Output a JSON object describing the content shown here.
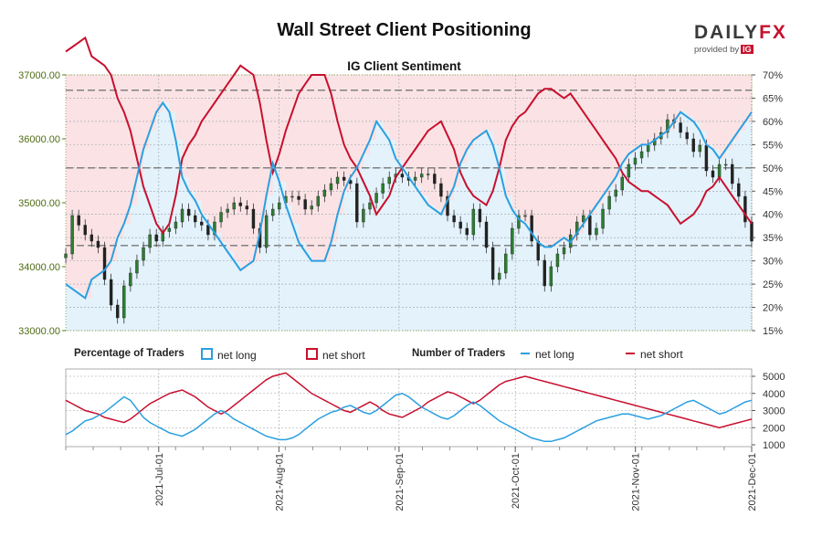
{
  "header": {
    "title": "Wall Street Client Positioning",
    "subtitle": "IG Client Sentiment",
    "logo_main": "DAILY",
    "logo_fx": "FX",
    "logo_provided": "provided by",
    "logo_ig": "IG"
  },
  "legend": {
    "percentage_title": "Percentage of Traders",
    "pct_long": "net long",
    "pct_short": "net short",
    "number_title": "Number of Traders",
    "num_long": "net long",
    "num_short": "net short"
  },
  "colors": {
    "long": "#2b9fe0",
    "short": "#c8102e",
    "candle_up": "#2e7d32",
    "candle_down": "#222222",
    "short_band": "#fbe3e5",
    "long_band": "#e3f2fb"
  },
  "axes": {
    "price_ticks": [
      "33000.00",
      "34000.00",
      "35000.00",
      "36000.00",
      "37000.00"
    ],
    "pct_ticks": [
      "15%",
      "20%",
      "25%",
      "30%",
      "35%",
      "40%",
      "45%",
      "50%",
      "55%",
      "60%",
      "65%",
      "70%"
    ],
    "count_ticks": [
      "1000",
      "2000",
      "3000",
      "4000",
      "5000"
    ],
    "x_ticks": [
      "2021-Jul-01",
      "2021-Aug-01",
      "2021-Sep-01",
      "2021-Oct-01",
      "2021-Nov-01",
      "2021-Dec-01"
    ]
  },
  "chart_data": [
    {
      "type": "line",
      "title": "IG Client Sentiment",
      "xlim": [
        "2021-06-07",
        "2021-12-01"
      ],
      "price_ylim": [
        33000,
        37000
      ],
      "percent_ylim": [
        15,
        70
      ],
      "reference_lines_percent": [
        66.7,
        50,
        33.3
      ],
      "grid": true,
      "price_candles_close": [
        34200,
        34800,
        34650,
        34500,
        34400,
        34300,
        33800,
        33400,
        33200,
        33700,
        33900,
        34100,
        34300,
        34500,
        34400,
        34550,
        34600,
        34700,
        34900,
        34800,
        34700,
        34650,
        34500,
        34700,
        34850,
        34900,
        35000,
        34950,
        34900,
        34600,
        34300,
        34800,
        34900,
        35000,
        35100,
        35100,
        35050,
        34900,
        34950,
        35100,
        35200,
        35300,
        35400,
        35350,
        35300,
        34700,
        34900,
        35000,
        35150,
        35300,
        35400,
        35450,
        35400,
        35350,
        35400,
        35450,
        35450,
        35300,
        35100,
        34800,
        34700,
        34600,
        34500,
        34900,
        34700,
        34300,
        33800,
        33900,
        34200,
        34600,
        34800,
        34800,
        34400,
        34100,
        33700,
        34000,
        34200,
        34300,
        34500,
        34700,
        34800,
        34500,
        34600,
        34900,
        35100,
        35200,
        35400,
        35600,
        35700,
        35800,
        35900,
        36000,
        36100,
        36300,
        36250,
        36100,
        36000,
        35800,
        35900,
        35500,
        35400,
        35600,
        35600,
        35300,
        35100,
        34700,
        34400
      ],
      "percent_long": [
        25,
        24,
        23,
        22,
        26,
        27,
        28,
        30,
        35,
        38,
        42,
        48,
        54,
        58,
        62,
        64,
        62,
        56,
        48,
        45,
        43,
        40,
        38,
        36,
        34,
        32,
        30,
        28,
        29,
        30,
        36,
        44,
        51,
        47,
        42,
        38,
        34,
        32,
        30,
        30,
        30,
        34,
        40,
        45,
        48,
        50,
        53,
        56,
        60,
        58,
        56,
        52,
        50,
        48,
        46,
        44,
        42,
        41,
        40,
        43,
        46,
        51,
        54,
        56,
        57,
        58,
        55,
        50,
        44,
        41,
        39,
        38,
        36,
        34,
        33,
        33,
        34,
        35,
        34,
        36,
        38,
        40,
        42,
        44,
        46,
        48,
        51,
        53,
        54,
        55,
        55,
        56,
        57,
        58,
        60,
        62,
        61,
        60,
        58,
        55,
        54,
        52,
        54,
        56,
        58,
        60,
        62
      ],
      "percent_short": [
        75,
        76,
        77,
        78,
        74,
        73,
        72,
        70,
        65,
        62,
        58,
        52,
        46,
        42,
        38,
        36,
        38,
        44,
        52,
        55,
        57,
        60,
        62,
        64,
        66,
        68,
        70,
        72,
        71,
        70,
        64,
        56,
        49,
        53,
        58,
        62,
        66,
        68,
        70,
        70,
        70,
        66,
        60,
        55,
        52,
        50,
        47,
        44,
        40,
        42,
        44,
        48,
        50,
        52,
        54,
        56,
        58,
        59,
        60,
        57,
        54,
        49,
        46,
        44,
        43,
        42,
        45,
        50,
        56,
        59,
        61,
        62,
        64,
        66,
        67,
        67,
        66,
        65,
        66,
        64,
        62,
        60,
        58,
        56,
        54,
        52,
        49,
        47,
        46,
        45,
        45,
        44,
        43,
        42,
        40,
        38,
        39,
        40,
        42,
        45,
        46,
        48,
        46,
        44,
        42,
        40,
        38
      ],
      "traders_long": [
        1600,
        1800,
        2100,
        2400,
        2500,
        2700,
        2900,
        3200,
        3500,
        3800,
        3600,
        3100,
        2600,
        2300,
        2100,
        1900,
        1700,
        1600,
        1500,
        1700,
        1900,
        2200,
        2500,
        2800,
        3000,
        2800,
        2500,
        2300,
        2100,
        1900,
        1700,
        1500,
        1400,
        1300,
        1300,
        1400,
        1600,
        1900,
        2200,
        2500,
        2700,
        2900,
        3000,
        3200,
        3300,
        3100,
        2900,
        2800,
        3000,
        3300,
        3600,
        3900,
        4000,
        3800,
        3500,
        3200,
        3000,
        2800,
        2600,
        2500,
        2700,
        3000,
        3300,
        3500,
        3300,
        3000,
        2700,
        2400,
        2200,
        2000,
        1800,
        1600,
        1400,
        1300,
        1200,
        1200,
        1300,
        1400,
        1600,
        1800,
        2000,
        2200,
        2400,
        2500,
        2600,
        2700,
        2800,
        2800,
        2700,
        2600,
        2500,
        2600,
        2700,
        2900,
        3100,
        3300,
        3500,
        3600,
        3400,
        3200,
        3000,
        2800,
        2900,
        3100,
        3300,
        3500,
        3600
      ],
      "traders_short": [
        3600,
        3400,
        3200,
        3000,
        2900,
        2800,
        2600,
        2500,
        2400,
        2300,
        2500,
        2800,
        3100,
        3400,
        3600,
        3800,
        4000,
        4100,
        4200,
        4000,
        3800,
        3500,
        3200,
        3000,
        2800,
        3000,
        3300,
        3600,
        3900,
        4200,
        4500,
        4800,
        5000,
        5100,
        5200,
        4900,
        4600,
        4300,
        4000,
        3800,
        3600,
        3400,
        3200,
        3000,
        2900,
        3100,
        3300,
        3500,
        3300,
        3000,
        2800,
        2700,
        2600,
        2800,
        3000,
        3200,
        3500,
        3700,
        3900,
        4100,
        4000,
        3800,
        3600,
        3400,
        3600,
        3900,
        4200,
        4500,
        4700,
        4800,
        4900,
        5000,
        4900,
        4800,
        4700,
        4600,
        4500,
        4400,
        4300,
        4200,
        4100,
        4000,
        3900,
        3800,
        3700,
        3600,
        3500,
        3400,
        3300,
        3200,
        3100,
        3000,
        2900,
        2800,
        2700,
        2600,
        2500,
        2400,
        2300,
        2200,
        2100,
        2000,
        2100,
        2200,
        2300,
        2400,
        2500
      ],
      "series": [
        {
          "name": "net long"
        },
        {
          "name": "net short"
        }
      ]
    }
  ]
}
